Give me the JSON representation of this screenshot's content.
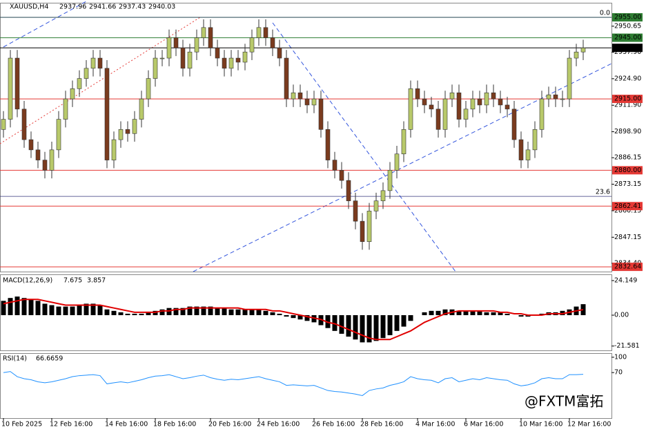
{
  "chart_data": [
    {
      "type": "candlestick",
      "title": "XAUUSD,H4",
      "last_bar": {
        "open": 2937.96,
        "high": 2941.66,
        "low": 2937.43,
        "close": 2940.03
      },
      "categories": [
        "10 Feb 2025",
        null,
        null,
        null,
        null,
        null,
        null,
        "12 Feb 16:00",
        null,
        null,
        null,
        null,
        null,
        null,
        null,
        "14 Feb 16:00",
        null,
        null,
        null,
        null,
        null,
        null,
        "18 Feb 16:00",
        null,
        null,
        null,
        null,
        null,
        null,
        null,
        "20 Feb 16:00",
        null,
        null,
        null,
        null,
        null,
        null,
        "24 Feb 16:00",
        null,
        null,
        null,
        null,
        null,
        null,
        null,
        "26 Feb 16:00",
        null,
        null,
        null,
        null,
        null,
        null,
        "28 Feb 16:00",
        null,
        null,
        null,
        null,
        null,
        null,
        null,
        "4 Mar 16:00",
        null,
        null,
        null,
        null,
        null,
        null,
        "6 Mar 16:00",
        null,
        null,
        null,
        null,
        null,
        null,
        null,
        "10 Mar 16:00",
        null,
        null,
        null,
        null,
        null,
        null,
        "12 Mar 16:00",
        null,
        null
      ],
      "open": [
        2900,
        2905,
        2935,
        2910,
        2895,
        2890,
        2885,
        2880,
        2890,
        2905,
        2915,
        2920,
        2925,
        2930,
        2935,
        2930,
        2885,
        2895,
        2900,
        2898,
        2905,
        2915,
        2925,
        2935,
        2935,
        2945,
        2940,
        2930,
        2938,
        2945,
        2950,
        2940,
        2935,
        2930,
        2935,
        2933,
        2938,
        2945,
        2950,
        2945,
        2940,
        2935,
        2915,
        2918,
        2915,
        2912,
        2915,
        2900,
        2885,
        2880,
        2875,
        2865,
        2855,
        2845,
        2860,
        2865,
        2870,
        2880,
        2888,
        2900,
        2920,
        2915,
        2912,
        2910,
        2900,
        2915,
        2918,
        2905,
        2910,
        2915,
        2912,
        2918,
        2915,
        2912,
        2910,
        2895,
        2885,
        2890,
        2900,
        2915,
        2917,
        2915,
        2915,
        2935,
        2938
      ],
      "high": [
        2909,
        2939,
        2939,
        2914,
        2899,
        2894,
        2889,
        2894,
        2909,
        2919,
        2924,
        2929,
        2934,
        2939,
        2939,
        2934,
        2899,
        2904,
        2904,
        2909,
        2919,
        2929,
        2939,
        2939,
        2949,
        2949,
        2944,
        2942,
        2949,
        2954,
        2954,
        2944,
        2939,
        2939,
        2939,
        2942,
        2949,
        2954,
        2954,
        2949,
        2944,
        2939,
        2922,
        2922,
        2919,
        2919,
        2919,
        2904,
        2889,
        2884,
        2879,
        2869,
        2859,
        2864,
        2869,
        2874,
        2884,
        2892,
        2904,
        2924,
        2924,
        2919,
        2916,
        2914,
        2919,
        2922,
        2922,
        2914,
        2919,
        2919,
        2922,
        2922,
        2919,
        2916,
        2914,
        2899,
        2894,
        2904,
        2919,
        2921,
        2921,
        2919,
        2939,
        2942,
        2944
      ],
      "low": [
        2896,
        2901,
        2906,
        2891,
        2886,
        2881,
        2876,
        2876,
        2886,
        2901,
        2911,
        2916,
        2921,
        2926,
        2926,
        2881,
        2881,
        2891,
        2894,
        2894,
        2901,
        2911,
        2921,
        2931,
        2931,
        2936,
        2926,
        2926,
        2934,
        2941,
        2936,
        2931,
        2926,
        2926,
        2929,
        2929,
        2934,
        2941,
        2941,
        2936,
        2931,
        2911,
        2911,
        2911,
        2908,
        2908,
        2896,
        2881,
        2876,
        2871,
        2861,
        2851,
        2841,
        2841,
        2856,
        2861,
        2866,
        2876,
        2884,
        2896,
        2911,
        2908,
        2906,
        2896,
        2896,
        2911,
        2901,
        2901,
        2906,
        2908,
        2908,
        2911,
        2908,
        2906,
        2891,
        2881,
        2881,
        2886,
        2896,
        2911,
        2911,
        2911,
        2911,
        2931,
        2934
      ],
      "close": [
        2905,
        2935,
        2910,
        2895,
        2890,
        2885,
        2880,
        2890,
        2905,
        2915,
        2920,
        2925,
        2930,
        2935,
        2930,
        2885,
        2895,
        2900,
        2898,
        2905,
        2915,
        2925,
        2935,
        2935,
        2945,
        2940,
        2930,
        2938,
        2945,
        2950,
        2940,
        2935,
        2930,
        2935,
        2933,
        2938,
        2945,
        2950,
        2945,
        2940,
        2935,
        2915,
        2918,
        2915,
        2912,
        2915,
        2900,
        2885,
        2880,
        2875,
        2865,
        2855,
        2845,
        2860,
        2865,
        2870,
        2880,
        2888,
        2900,
        2920,
        2915,
        2912,
        2910,
        2900,
        2915,
        2918,
        2905,
        2910,
        2915,
        2912,
        2918,
        2915,
        2912,
        2910,
        2895,
        2885,
        2890,
        2900,
        2915,
        2917,
        2915,
        2915,
        2935,
        2938,
        2940
      ],
      "up_color": "#b8c96a",
      "down_color": "#7a3b1e",
      "ylim": [
        2830.3,
        2961.8
      ],
      "yticks": [
        {
          "value": 2950.65,
          "label": "2950.65"
        },
        {
          "value": 2937.9,
          "label": "2937.90"
        },
        {
          "value": 2924.9,
          "label": "2924.90"
        },
        {
          "value": 2911.9,
          "label": "2911.90"
        },
        {
          "value": 2898.9,
          "label": "2898.90"
        },
        {
          "value": 2886.15,
          "label": "2886.15"
        },
        {
          "value": 2873.15,
          "label": "2873.15"
        },
        {
          "value": 2860.15,
          "label": "2860.15"
        },
        {
          "value": 2847.15,
          "label": "2847.15"
        },
        {
          "value": 2834.4,
          "label": "2834.40"
        }
      ],
      "levels": [
        {
          "value": 2955,
          "label": "2955.00",
          "color": "#2e7d32"
        },
        {
          "value": 2945,
          "label": "2945.00",
          "color": "#2e7d32"
        },
        {
          "value": 2940.03,
          "label": "2940.03",
          "color": "#000000"
        },
        {
          "value": 2915,
          "label": "2915.00",
          "color": "#e53935"
        },
        {
          "value": 2880,
          "label": "2880.00",
          "color": "#e53935"
        },
        {
          "value": 2862.41,
          "label": "2862.41",
          "color": "#e53935"
        },
        {
          "value": 2832.64,
          "label": "2832.64",
          "color": "#e53935"
        }
      ],
      "fib_levels": [
        {
          "value": 2955,
          "label": "0.0"
        },
        {
          "value": 2867.2,
          "label": "23.6"
        }
      ]
    },
    {
      "type": "bar",
      "title": "MACD(12,26,9)",
      "values": [
        10,
        12,
        13,
        12,
        11,
        10,
        8,
        7,
        6,
        6,
        6,
        7,
        8,
        8,
        7,
        4,
        3,
        2,
        1,
        1,
        1,
        2,
        3,
        4,
        5,
        5,
        5,
        6,
        6,
        6,
        6,
        5,
        5,
        4,
        4,
        4,
        4,
        4,
        3,
        2,
        1,
        -1,
        -2,
        -3,
        -4,
        -5,
        -7,
        -9,
        -11,
        -13,
        -15,
        -17,
        -19,
        -19,
        -18,
        -16,
        -14,
        -11,
        -8,
        -4,
        0,
        2,
        3,
        3,
        4,
        4,
        3,
        3,
        3,
        3,
        2,
        2,
        2,
        1,
        0,
        -1,
        -1,
        0,
        1,
        2,
        2,
        3,
        4,
        6,
        7.675
      ],
      "color": "#000000",
      "signal": {
        "color": "#e00000",
        "values": [
          8,
          9,
          10,
          11,
          11,
          11,
          10,
          9,
          8,
          7,
          7,
          7,
          7,
          7,
          7,
          6,
          5,
          4,
          3,
          2,
          2,
          2,
          2,
          3,
          3,
          4,
          4,
          5,
          5,
          5,
          5,
          5,
          5,
          5,
          5,
          4,
          4,
          4,
          4,
          3,
          3,
          2,
          1,
          0,
          -1,
          -2,
          -3,
          -5,
          -6,
          -8,
          -10,
          -12,
          -14,
          -16,
          -17,
          -17,
          -17,
          -15,
          -13,
          -11,
          -8,
          -5,
          -3,
          -1,
          1,
          2,
          3,
          3,
          3,
          3,
          3,
          3,
          2,
          2,
          1,
          1,
          0,
          0,
          0,
          1,
          1,
          1,
          2,
          3,
          3.857
        ]
      },
      "ylim": [
        -24.6,
        28.5
      ],
      "yticks": [
        24.149,
        {
          "value": 0,
          "label": "0.00"
        },
        -21.581
      ]
    },
    {
      "type": "line",
      "title": "RSI(14)",
      "values": [
        70,
        72,
        62,
        58,
        56,
        52,
        50,
        52,
        55,
        58,
        62,
        64,
        65,
        66,
        64,
        48,
        50,
        52,
        50,
        53,
        56,
        60,
        63,
        64,
        66,
        62,
        58,
        60,
        63,
        65,
        60,
        57,
        55,
        57,
        56,
        58,
        60,
        62,
        58,
        55,
        52,
        45,
        46,
        45,
        44,
        45,
        40,
        35,
        33,
        32,
        30,
        28,
        25,
        35,
        38,
        40,
        45,
        48,
        52,
        62,
        58,
        56,
        55,
        50,
        58,
        60,
        52,
        55,
        58,
        56,
        60,
        58,
        56,
        55,
        48,
        44,
        46,
        50,
        58,
        60,
        58,
        58,
        66,
        66,
        66.6659
      ],
      "color": "#1e90ff",
      "ylim": [
        -19,
        108
      ],
      "yticks": [
        100,
        70
      ]
    }
  ]
}
